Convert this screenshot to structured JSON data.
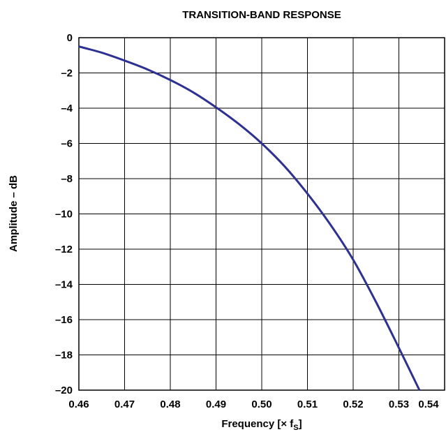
{
  "chart_data": {
    "type": "line",
    "title": "TRANSITION-BAND RESPONSE",
    "xlabel": "Frequency [× f",
    "xlabel_sub": "S",
    "xlabel_end": "]",
    "ylabel": "Amplitude – dB",
    "xlim": [
      0.46,
      0.54
    ],
    "ylim": [
      -20,
      0
    ],
    "xticks": [
      "0.46",
      "0.47",
      "0.48",
      "0.49",
      "0.50",
      "0.51",
      "0.52",
      "0.53",
      "0.54"
    ],
    "yticks": [
      "0",
      "–2",
      "–4",
      "–6",
      "–8",
      "–10",
      "–12",
      "–14",
      "–16",
      "–18",
      "–20"
    ],
    "grid": true,
    "line_color": "#2e3192",
    "series": [
      {
        "x": [
          0.46,
          0.465,
          0.47,
          0.475,
          0.48,
          0.485,
          0.49,
          0.495,
          0.5,
          0.505,
          0.51,
          0.515,
          0.52,
          0.525,
          0.53,
          0.5345
        ],
        "y": [
          -0.5,
          -0.85,
          -1.3,
          -1.8,
          -2.4,
          -3.1,
          -3.95,
          -4.9,
          -6.0,
          -7.3,
          -8.85,
          -10.6,
          -12.6,
          -15.0,
          -17.6,
          -20.0
        ]
      }
    ]
  }
}
